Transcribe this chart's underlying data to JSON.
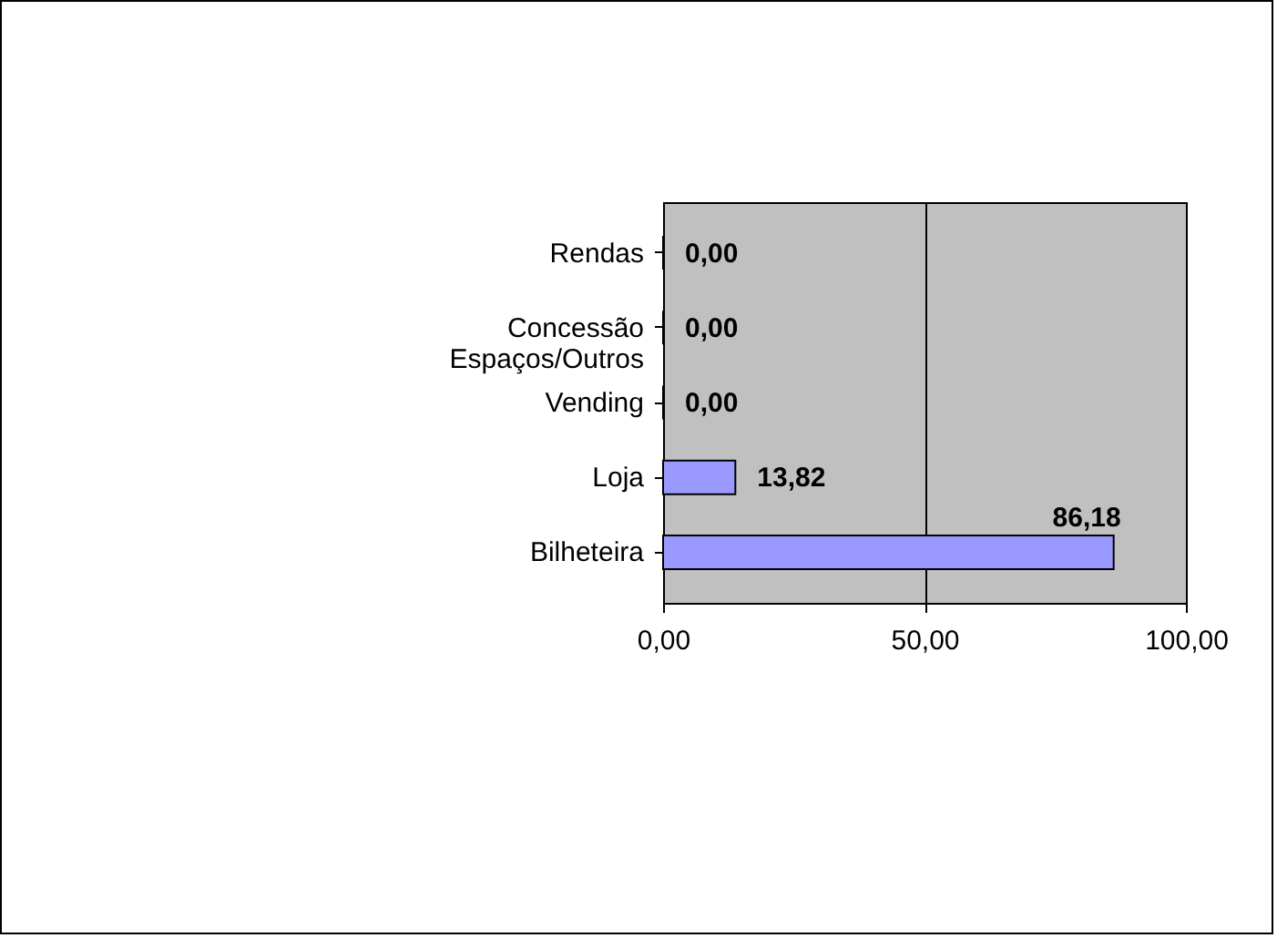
{
  "chart_data": {
    "type": "bar",
    "orientation": "horizontal",
    "categories": [
      "Rendas",
      "Concessão Espaços/Outros",
      "Vending",
      "Loja",
      "Bilheteira"
    ],
    "values": [
      0.0,
      0.0,
      0.0,
      13.82,
      86.18
    ],
    "color": "#9999ff",
    "value_labels": [
      "0,00",
      "0,00",
      "0,00",
      "13,82",
      "86,18"
    ],
    "xlim": [
      0,
      100
    ],
    "xticks": [
      {
        "value": 0,
        "label": "0,00"
      },
      {
        "value": 50,
        "label": "50,00"
      },
      {
        "value": 100,
        "label": "100,00"
      }
    ],
    "grid": "x"
  }
}
